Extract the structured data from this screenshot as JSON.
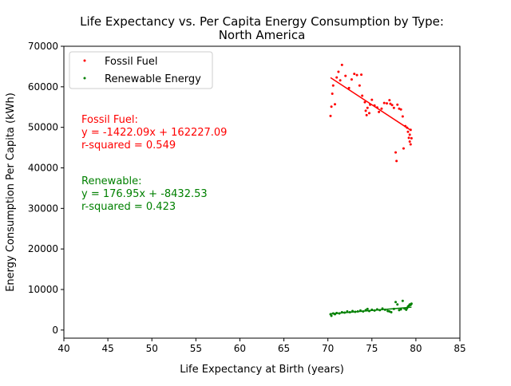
{
  "chart_data": {
    "type": "scatter",
    "title_line1": "Life Expectancy vs. Per Capita Energy Consumption by Type:",
    "title_line2": "North America",
    "xlabel": "Life Expectancy at Birth (years)",
    "ylabel": "Energy Consumption Per Capita (kWh)",
    "xlim": [
      40,
      85
    ],
    "ylim": [
      -2000,
      70000
    ],
    "xticks": [
      40,
      45,
      50,
      55,
      60,
      65,
      70,
      75,
      80,
      85
    ],
    "yticks": [
      0,
      10000,
      20000,
      30000,
      40000,
      50000,
      60000,
      70000
    ],
    "grid": false,
    "legend_position": "top-left",
    "series": [
      {
        "name": "Fossil Fuel",
        "color": "#ff0000",
        "points": [
          [
            70.3,
            52800
          ],
          [
            70.4,
            55100
          ],
          [
            70.5,
            58300
          ],
          [
            70.6,
            60300
          ],
          [
            70.8,
            55700
          ],
          [
            71.0,
            62300
          ],
          [
            71.2,
            63700
          ],
          [
            71.4,
            61600
          ],
          [
            71.6,
            65400
          ],
          [
            72.0,
            62700
          ],
          [
            72.4,
            59700
          ],
          [
            72.7,
            61800
          ],
          [
            73.0,
            63200
          ],
          [
            73.3,
            62900
          ],
          [
            73.6,
            60300
          ],
          [
            73.8,
            63000
          ],
          [
            73.9,
            57800
          ],
          [
            74.2,
            56200
          ],
          [
            74.3,
            54100
          ],
          [
            74.4,
            53000
          ],
          [
            74.5,
            54800
          ],
          [
            74.7,
            53500
          ],
          [
            74.8,
            55600
          ],
          [
            75.0,
            56800
          ],
          [
            75.3,
            55400
          ],
          [
            75.6,
            54900
          ],
          [
            75.8,
            53800
          ],
          [
            76.1,
            54600
          ],
          [
            76.4,
            56000
          ],
          [
            76.7,
            55900
          ],
          [
            77.0,
            56700
          ],
          [
            77.1,
            55800
          ],
          [
            77.3,
            55500
          ],
          [
            77.5,
            54800
          ],
          [
            77.7,
            43800
          ],
          [
            77.8,
            41700
          ],
          [
            77.9,
            55600
          ],
          [
            78.1,
            54600
          ],
          [
            78.3,
            54400
          ],
          [
            78.5,
            52700
          ],
          [
            78.6,
            44800
          ],
          [
            78.8,
            50300
          ],
          [
            79.0,
            49900
          ],
          [
            79.1,
            48900
          ],
          [
            79.2,
            47400
          ],
          [
            79.3,
            46500
          ],
          [
            79.3,
            48200
          ],
          [
            79.4,
            49400
          ],
          [
            79.4,
            45800
          ],
          [
            79.5,
            47300
          ]
        ],
        "fit": {
          "slope": -1422.09,
          "intercept": 162227.09,
          "x_range": [
            70.3,
            79.5
          ]
        }
      },
      {
        "name": "Renewable Energy",
        "color": "#008000",
        "points": [
          [
            70.3,
            3900
          ],
          [
            70.4,
            3500
          ],
          [
            70.6,
            4100
          ],
          [
            70.8,
            3900
          ],
          [
            71.0,
            4200
          ],
          [
            71.3,
            4100
          ],
          [
            71.6,
            4400
          ],
          [
            71.9,
            4300
          ],
          [
            72.2,
            4600
          ],
          [
            72.5,
            4400
          ],
          [
            72.8,
            4700
          ],
          [
            73.1,
            4500
          ],
          [
            73.4,
            4600
          ],
          [
            73.7,
            4800
          ],
          [
            74.0,
            4600
          ],
          [
            74.3,
            4900
          ],
          [
            74.5,
            5200
          ],
          [
            74.7,
            4700
          ],
          [
            75.0,
            5000
          ],
          [
            75.3,
            4800
          ],
          [
            75.6,
            5100
          ],
          [
            75.9,
            4900
          ],
          [
            76.2,
            5300
          ],
          [
            76.5,
            5000
          ],
          [
            76.8,
            4700
          ],
          [
            77.0,
            4600
          ],
          [
            77.2,
            4400
          ],
          [
            77.5,
            5200
          ],
          [
            77.7,
            6900
          ],
          [
            77.9,
            6300
          ],
          [
            78.1,
            4900
          ],
          [
            78.3,
            5100
          ],
          [
            78.5,
            7200
          ],
          [
            78.7,
            5300
          ],
          [
            78.9,
            5000
          ],
          [
            79.0,
            5400
          ],
          [
            79.1,
            5800
          ],
          [
            79.2,
            6000
          ],
          [
            79.3,
            6300
          ],
          [
            79.4,
            6200
          ],
          [
            79.5,
            6500
          ]
        ],
        "fit": {
          "slope": 176.95,
          "intercept": -8432.53,
          "x_range": [
            70.3,
            79.5
          ]
        }
      }
    ],
    "legend": [
      "Fossil Fuel",
      "Renewable Energy"
    ],
    "annotations": [
      {
        "color": "#ff0000",
        "lines": [
          "Fossil Fuel:",
          "y = -1422.09x + 162227.09",
          "r-squared = 0.549"
        ]
      },
      {
        "color": "#008000",
        "lines": [
          "Renewable:",
          "y = 176.95x + -8432.53",
          "r-squared = 0.423"
        ]
      }
    ]
  }
}
